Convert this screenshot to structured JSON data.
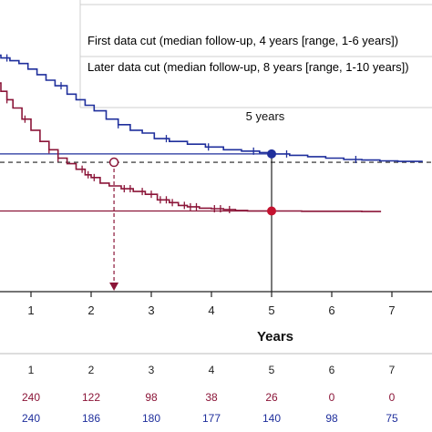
{
  "chart_data": {
    "type": "line",
    "title": "",
    "xlabel": "Years",
    "ylabel": "",
    "xlim": [
      0,
      7.5
    ],
    "x_ticks": [
      "1",
      "2",
      "3",
      "4",
      "5",
      "6",
      "7"
    ],
    "grid": false,
    "legend_placement": "top-right",
    "legend": [
      {
        "label": "First data cut (median follow-up, 4 years [range, 1-6 years])",
        "color": "#8b1538"
      },
      {
        "label": "Later data cut (median follow-up, 8 years [range, 1-10 years])",
        "color": "#1f2f9c"
      }
    ],
    "series": [
      {
        "name": "First data cut (median follow-up, 4 years [range, 1-6 years])",
        "color": "#8b1538",
        "x": [
          0,
          0.05,
          0.15,
          0.25,
          0.35,
          0.5,
          0.6,
          0.7,
          0.85,
          1.0,
          1.15,
          1.3,
          1.45,
          1.6,
          1.75,
          1.9,
          2.0,
          2.15,
          2.3,
          2.5,
          2.7,
          2.9,
          3.1,
          3.3,
          3.45,
          3.6,
          3.8,
          4.0,
          4.2,
          4.4,
          4.6,
          4.8,
          5.0,
          5.5,
          6.0,
          6.5,
          6.82
        ],
        "y": [
          0.83,
          0.82,
          0.79,
          0.77,
          0.75,
          0.72,
          0.69,
          0.66,
          0.62,
          0.58,
          0.54,
          0.51,
          0.48,
          0.46,
          0.44,
          0.42,
          0.41,
          0.39,
          0.38,
          0.37,
          0.36,
          0.35,
          0.33,
          0.32,
          0.31,
          0.305,
          0.3,
          0.298,
          0.295,
          0.292,
          0.29,
          0.29,
          0.29,
          0.289,
          0.289,
          0.288,
          0.288
        ],
        "censor_x": [
          0.1,
          0.6,
          0.9,
          1.3,
          1.45,
          1.85,
          1.95,
          2.05,
          2.55,
          2.65,
          2.85,
          3.0,
          3.15,
          3.25,
          3.35,
          3.55,
          3.65,
          3.75,
          4.05,
          4.15,
          4.3
        ]
      },
      {
        "name": "Later data cut (median follow-up, 8 years [range, 1-10 years])",
        "color": "#1f2f9c",
        "x": [
          0,
          0.2,
          0.35,
          0.5,
          0.65,
          0.8,
          0.95,
          1.1,
          1.25,
          1.4,
          1.6,
          1.75,
          1.9,
          2.05,
          2.25,
          2.45,
          2.65,
          2.85,
          3.05,
          3.3,
          3.6,
          3.9,
          4.2,
          4.5,
          4.8,
          5.0,
          5.3,
          5.6,
          5.9,
          6.2,
          6.5,
          6.8,
          7.1,
          7.5
        ],
        "y": [
          0.87,
          0.86,
          0.85,
          0.84,
          0.83,
          0.82,
          0.8,
          0.78,
          0.76,
          0.74,
          0.71,
          0.69,
          0.67,
          0.65,
          0.62,
          0.6,
          0.58,
          0.57,
          0.55,
          0.54,
          0.53,
          0.52,
          0.51,
          0.505,
          0.5,
          0.495,
          0.49,
          0.485,
          0.48,
          0.475,
          0.473,
          0.47,
          0.468,
          0.466
        ],
        "censor_x": [
          0.6,
          1.5,
          2.45,
          3.25,
          3.95,
          4.7,
          5.25,
          6.4
        ]
      }
    ],
    "reference_lines": {
      "first_plateau_y": 0.29,
      "later_plateau_y": 0.495,
      "dashed_y": 0.465,
      "crossing_x": 2.38,
      "vertical_x": 5
    },
    "annotations": [
      {
        "text": "5 years",
        "x": 5
      }
    ],
    "risk_table": {
      "x_labels": [
        "1",
        "2",
        "3",
        "4",
        "5",
        "6",
        "7"
      ],
      "rows": [
        {
          "color": "#8b1538",
          "values": [
            "240",
            "122",
            "98",
            "38",
            "26",
            "0",
            "0"
          ]
        },
        {
          "color": "#1f2f9c",
          "values": [
            "240",
            "186",
            "180",
            "177",
            "140",
            "98",
            "75"
          ]
        }
      ]
    }
  }
}
